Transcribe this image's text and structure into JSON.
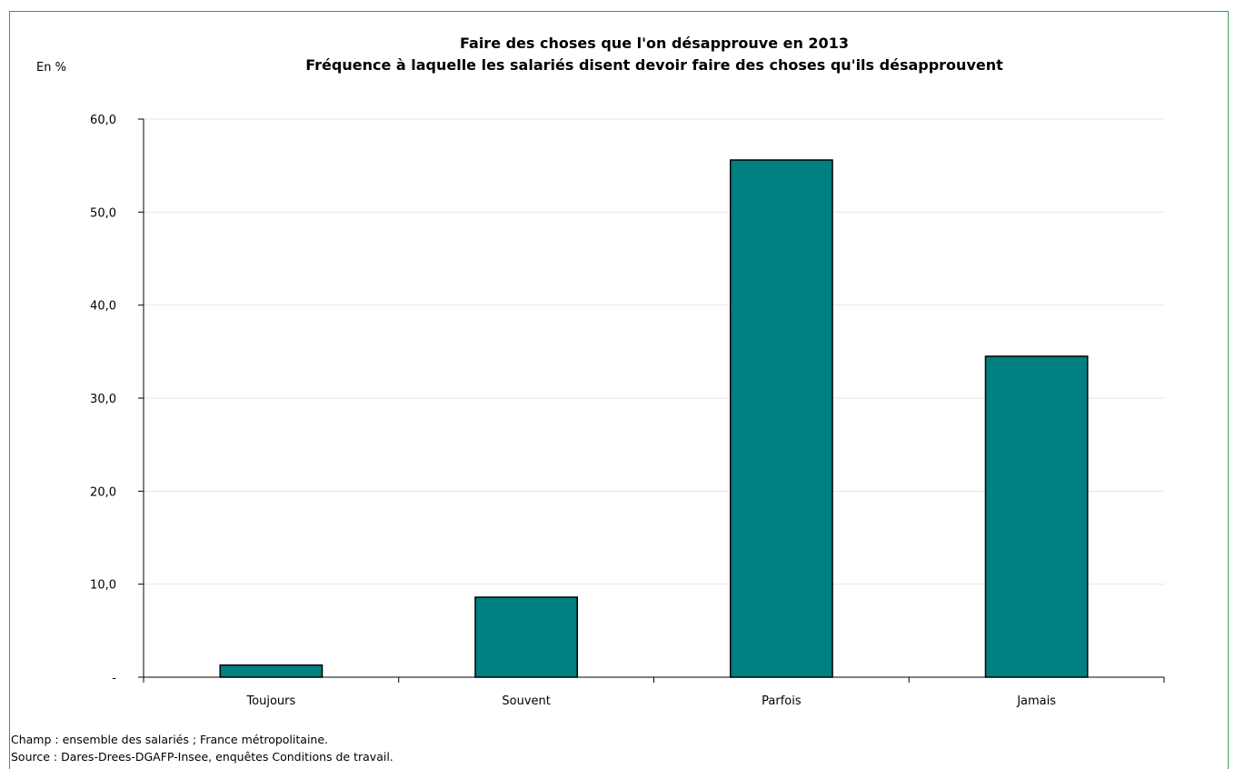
{
  "chart_data": {
    "type": "bar",
    "title": "Faire des choses que l'on désapprouve en 2013",
    "subtitle": "Fréquence à laquelle les salariés disent devoir faire des choses qu'ils désapprouvent",
    "unit_label": "En %",
    "categories": [
      "Toujours",
      "Souvent",
      "Parfois",
      "Jamais"
    ],
    "values": [
      1.3,
      8.6,
      55.6,
      34.5
    ],
    "ylim": [
      0,
      60
    ],
    "yticks": [
      0,
      10,
      20,
      30,
      40,
      50,
      60
    ],
    "ytick_labels": [
      "-",
      "10,0",
      "20,0",
      "30,0",
      "40,0",
      "50,0",
      "60,0"
    ],
    "grid": true,
    "bar_color": "#008080",
    "bar_edge_color": "#000000",
    "grid_color": "#e6e6e6",
    "legend": "none"
  },
  "notes": {
    "champ": "Champ : ensemble des salariés ; France métropolitaine.",
    "source": "Source : Dares-Drees-DGAFP-Insee, enquêtes Conditions de travail."
  },
  "frame_color": "#3a9a5e"
}
